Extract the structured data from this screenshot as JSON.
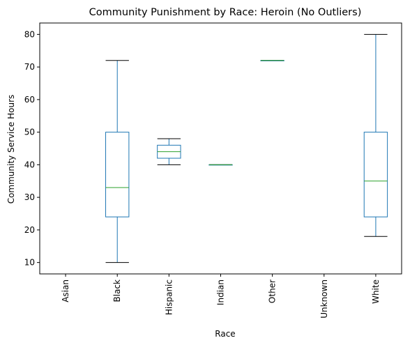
{
  "chart_data": {
    "type": "box",
    "title": "Community Punishment by Race: Heroin (No Outliers)",
    "xlabel": "Race",
    "ylabel": "Community Service Hours",
    "categories": [
      "Asian",
      "Black",
      "Hispanic",
      "Indian",
      "Other",
      "Unknown",
      "White"
    ],
    "ylim": [
      6.5,
      83.5
    ],
    "yticks": [
      10,
      20,
      30,
      40,
      50,
      60,
      70,
      80
    ],
    "grid": false,
    "boxes": [
      null,
      {
        "whislo": 10,
        "q1": 24,
        "med": 33,
        "q3": 50,
        "whishi": 72
      },
      {
        "whislo": 40,
        "q1": 42,
        "med": 44,
        "q3": 46,
        "whishi": 48
      },
      {
        "whislo": 40,
        "q1": 40,
        "med": 40,
        "q3": 40,
        "whishi": 40
      },
      {
        "whislo": 72,
        "q1": 72,
        "med": 72,
        "q3": 72,
        "whishi": 72
      },
      null,
      {
        "whislo": 18,
        "q1": 24,
        "med": 35,
        "q3": 50,
        "whishi": 80
      }
    ],
    "colors": {
      "box": "#1f77b4",
      "median": "#2ca02c",
      "cap": "#000000"
    }
  }
}
